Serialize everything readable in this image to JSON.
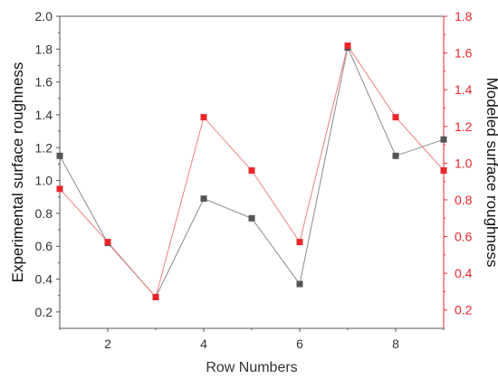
{
  "chart_data": {
    "type": "line",
    "xlabel": "Row Numbers",
    "ylabel_left": "Experimental surface roughness",
    "ylabel_right": "Modeled surface roughness",
    "x": [
      1,
      2,
      3,
      4,
      5,
      6,
      7,
      8,
      9
    ],
    "xlim": [
      1,
      9
    ],
    "x_ticks": [
      2,
      4,
      6,
      8
    ],
    "ylim_left": [
      0.1,
      2.0
    ],
    "ylim_right": [
      0.1,
      1.8
    ],
    "left_ticks": [
      0.2,
      0.4,
      0.6,
      0.8,
      1.0,
      1.2,
      1.4,
      1.6,
      1.8,
      2.0
    ],
    "right_ticks": [
      0.2,
      0.4,
      0.6,
      0.8,
      1.0,
      1.2,
      1.4,
      1.6,
      1.8
    ],
    "series": [
      {
        "axis": "left",
        "color": "#555555",
        "line_color": "#8a8a8a",
        "marker": "square",
        "values": [
          1.15,
          0.62,
          0.29,
          0.89,
          0.77,
          0.37,
          1.81,
          1.15,
          1.25
        ]
      },
      {
        "axis": "right",
        "color": "#e8262b",
        "line_color": "#f08080",
        "marker": "square",
        "values": [
          0.86,
          0.57,
          0.27,
          1.25,
          0.96,
          0.57,
          1.64,
          1.25,
          0.96
        ]
      }
    ]
  }
}
